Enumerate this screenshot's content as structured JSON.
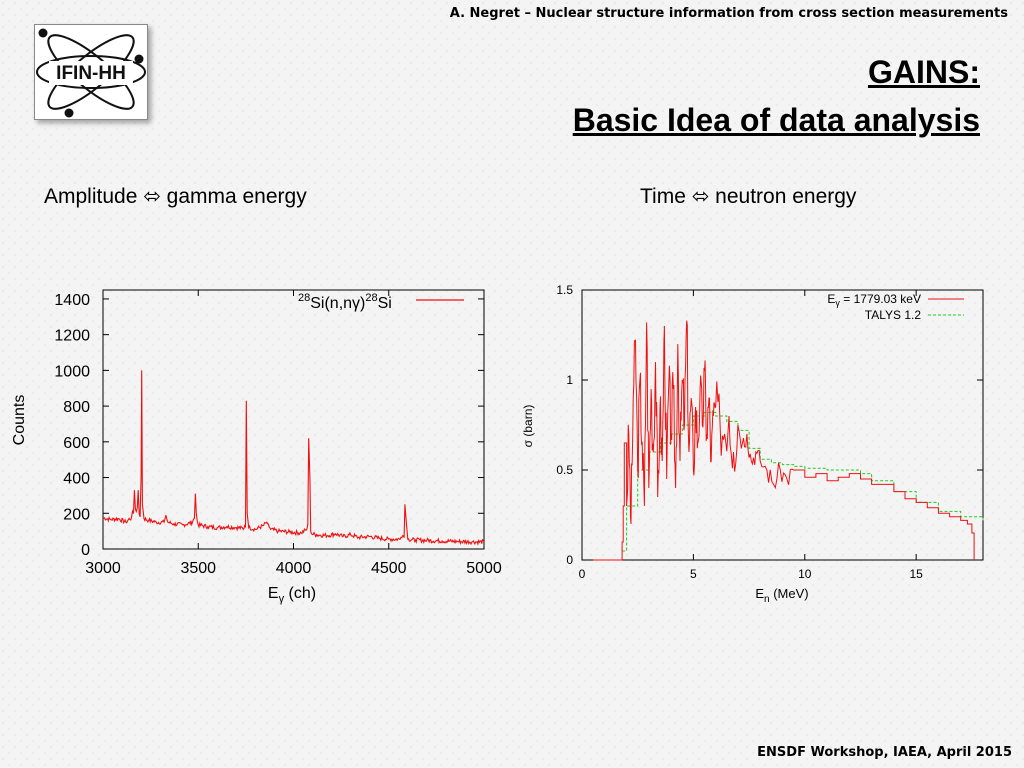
{
  "header": {
    "text": "A. Negret – Nuclear structure information from cross section measurements"
  },
  "logo": {
    "text": "IFIN-HH"
  },
  "title": {
    "line1": "GAINS:",
    "line2": "Basic Idea of data analysis"
  },
  "captions": {
    "left": "Amplitude ⬄ gamma energy",
    "right": "Time ⬄ neutron energy"
  },
  "footer": {
    "text": "ENSDF Workshop, IAEA, April 2015"
  },
  "colors": {
    "spectrum": "#ee1111",
    "talys": "#22cc22",
    "accent": "#000000"
  },
  "chart_data": [
    {
      "type": "line",
      "title": "",
      "legend": {
        "prefix": "28",
        "middle": "Si(n,nγ)",
        "super2": "28",
        "suffix": "Si",
        "placement": "top-right"
      },
      "xlabel_main": "E",
      "xlabel_sub": "γ",
      "xlabel_rest": " (ch)",
      "ylabel": "Counts",
      "xlim": [
        3000,
        5000
      ],
      "ylim": [
        0,
        1450
      ],
      "xticks": [
        3000,
        3500,
        4000,
        4500,
        5000
      ],
      "yticks": [
        0,
        200,
        400,
        600,
        800,
        1000,
        1200,
        1400
      ],
      "series": [
        {
          "name": "28Si(n,nγ)28Si",
          "x": [
            3000,
            3040,
            3080,
            3120,
            3150,
            3165,
            3175,
            3185,
            3195,
            3200,
            3203,
            3207,
            3215,
            3240,
            3280,
            3320,
            3330,
            3340,
            3370,
            3420,
            3470,
            3485,
            3490,
            3500,
            3550,
            3600,
            3650,
            3700,
            3740,
            3752,
            3757,
            3765,
            3800,
            3840,
            3860,
            3880,
            3920,
            3980,
            4040,
            4070,
            4080,
            4086,
            4095,
            4120,
            4180,
            4220,
            4260,
            4300,
            4340,
            4400,
            4450,
            4500,
            4560,
            4585,
            4592,
            4600,
            4640,
            4700,
            4780,
            4860,
            4940,
            5000
          ],
          "values": [
            175,
            165,
            170,
            150,
            180,
            330,
            210,
            330,
            180,
            400,
            1000,
            250,
            170,
            160,
            150,
            150,
            190,
            150,
            140,
            135,
            150,
            310,
            200,
            135,
            125,
            120,
            125,
            120,
            115,
            830,
            200,
            120,
            110,
            130,
            150,
            110,
            100,
            95,
            90,
            110,
            620,
            400,
            85,
            80,
            75,
            85,
            70,
            80,
            65,
            70,
            60,
            55,
            55,
            250,
            150,
            55,
            50,
            48,
            45,
            42,
            40,
            40
          ]
        }
      ]
    },
    {
      "type": "line",
      "title": "",
      "legend_entries": [
        {
          "main": "E",
          "sub": "γ",
          "rest": " = 1779.03 keV"
        },
        {
          "main": "TALYS 1.2",
          "sub": "",
          "rest": ""
        }
      ],
      "xlabel_main": "E",
      "xlabel_sub": "n",
      "xlabel_rest": " (MeV)",
      "ylabel": "σ (barn)",
      "xlim": [
        0,
        18
      ],
      "ylim": [
        0,
        1.5
      ],
      "xticks": [
        0,
        5,
        10,
        15
      ],
      "yticks": [
        0,
        0.5,
        1,
        1.5
      ],
      "yticklabels": [
        "0",
        "0.5",
        "1",
        "1.5"
      ],
      "series": [
        {
          "name": "Eγ = 1779.03 keV",
          "x": [
            0.5,
            1.7,
            1.8,
            1.85,
            1.9,
            2.0,
            2.1,
            2.2,
            2.3,
            2.4,
            2.5,
            2.6,
            2.7,
            2.8,
            2.9,
            3.0,
            3.1,
            3.2,
            3.3,
            3.4,
            3.5,
            3.6,
            3.7,
            3.8,
            3.9,
            4.0,
            4.1,
            4.2,
            4.3,
            4.4,
            4.5,
            4.6,
            4.7,
            4.8,
            4.9,
            5.0,
            5.1,
            5.2,
            5.3,
            5.4,
            5.5,
            5.6,
            5.7,
            5.8,
            5.9,
            6.0,
            6.2,
            6.4,
            6.6,
            6.8,
            7.0,
            7.2,
            7.4,
            7.6,
            7.8,
            8.0,
            8.3,
            8.6,
            8.9,
            9.2,
            9.5,
            10.0,
            10.5,
            11.0,
            11.5,
            12.0,
            12.5,
            13.0,
            13.5,
            14.0,
            14.5,
            15.0,
            15.5,
            16.0,
            16.5,
            17.0,
            17.3,
            17.5,
            17.6
          ],
          "values": [
            0,
            0,
            0.1,
            0.3,
            0.65,
            0.3,
            0.7,
            0.2,
            0.9,
            1.22,
            0.5,
            1.0,
            0.65,
            0.3,
            1.32,
            0.4,
            0.95,
            0.6,
            1.1,
            0.35,
            0.85,
            0.55,
            1.3,
            0.45,
            1.0,
            0.7,
            0.95,
            0.4,
            1.2,
            0.55,
            1.0,
            0.75,
            1.33,
            0.6,
            0.9,
            0.5,
            0.85,
            0.65,
            0.95,
            0.75,
            1.05,
            0.7,
            0.9,
            0.55,
            0.8,
            0.85,
            0.75,
            0.7,
            0.8,
            0.6,
            0.75,
            0.65,
            0.7,
            0.55,
            0.6,
            0.55,
            0.5,
            0.42,
            0.5,
            0.45,
            0.5,
            0.46,
            0.48,
            0.44,
            0.46,
            0.48,
            0.45,
            0.42,
            0.42,
            0.38,
            0.34,
            0.32,
            0.29,
            0.26,
            0.24,
            0.22,
            0.2,
            0.15,
            0
          ]
        },
        {
          "name": "TALYS 1.2",
          "x": [
            1.8,
            2.0,
            2.5,
            3.0,
            3.5,
            4.0,
            4.5,
            5.0,
            5.5,
            6.0,
            6.5,
            7.0,
            7.5,
            8.0,
            8.5,
            9.0,
            9.5,
            10.0,
            11.0,
            12.0,
            12.5,
            13.0,
            14.0,
            15.0,
            16.0,
            17.0,
            18.0
          ],
          "values": [
            0.05,
            0.3,
            0.5,
            0.6,
            0.65,
            0.7,
            0.75,
            0.8,
            0.82,
            0.8,
            0.77,
            0.72,
            0.62,
            0.56,
            0.54,
            0.53,
            0.52,
            0.51,
            0.5,
            0.5,
            0.48,
            0.44,
            0.38,
            0.32,
            0.27,
            0.24,
            0.22
          ]
        }
      ]
    }
  ]
}
